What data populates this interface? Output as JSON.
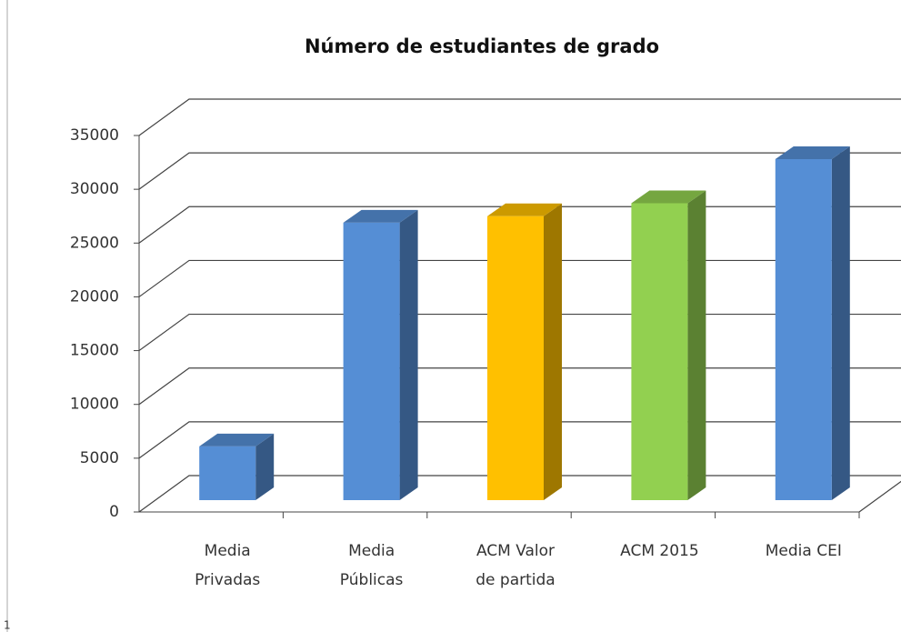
{
  "chart_data": {
    "type": "bar3d",
    "title": "Número de estudiantes de grado",
    "categories": [
      [
        "Media",
        "Privadas"
      ],
      [
        "Media",
        "Públicas"
      ],
      [
        "ACM Valor",
        "de partida"
      ],
      [
        "ACM 2015"
      ],
      [
        "Media CEI"
      ]
    ],
    "values": [
      5000,
      25800,
      26400,
      27600,
      31700
    ],
    "colors": [
      "#558ed5",
      "#558ed5",
      "#ffc000",
      "#92d050",
      "#558ed5"
    ],
    "ylim": [
      0,
      35000
    ],
    "yticks": [
      0,
      5000,
      10000,
      15000,
      20000,
      25000,
      30000,
      35000
    ],
    "grid": true,
    "footnote": "1"
  }
}
